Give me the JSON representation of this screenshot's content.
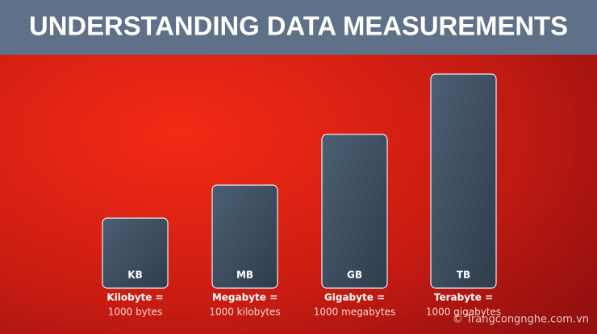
{
  "header": {
    "title": "UNDERSTANDING DATA MEASUREMENTS"
  },
  "items": [
    {
      "abbr": "KB",
      "name": "Kilobyte =",
      "description": "1000 bytes"
    },
    {
      "abbr": "MB",
      "name": "Megabyte =",
      "description": "1000 kilobytes"
    },
    {
      "abbr": "GB",
      "name": "Gigabyte =",
      "description": "1000 megabytes"
    },
    {
      "abbr": "TB",
      "name": "Terabyte =",
      "description": "1000 gigabytes"
    }
  ],
  "watermark": "© Trangcongnghe.com.vn"
}
